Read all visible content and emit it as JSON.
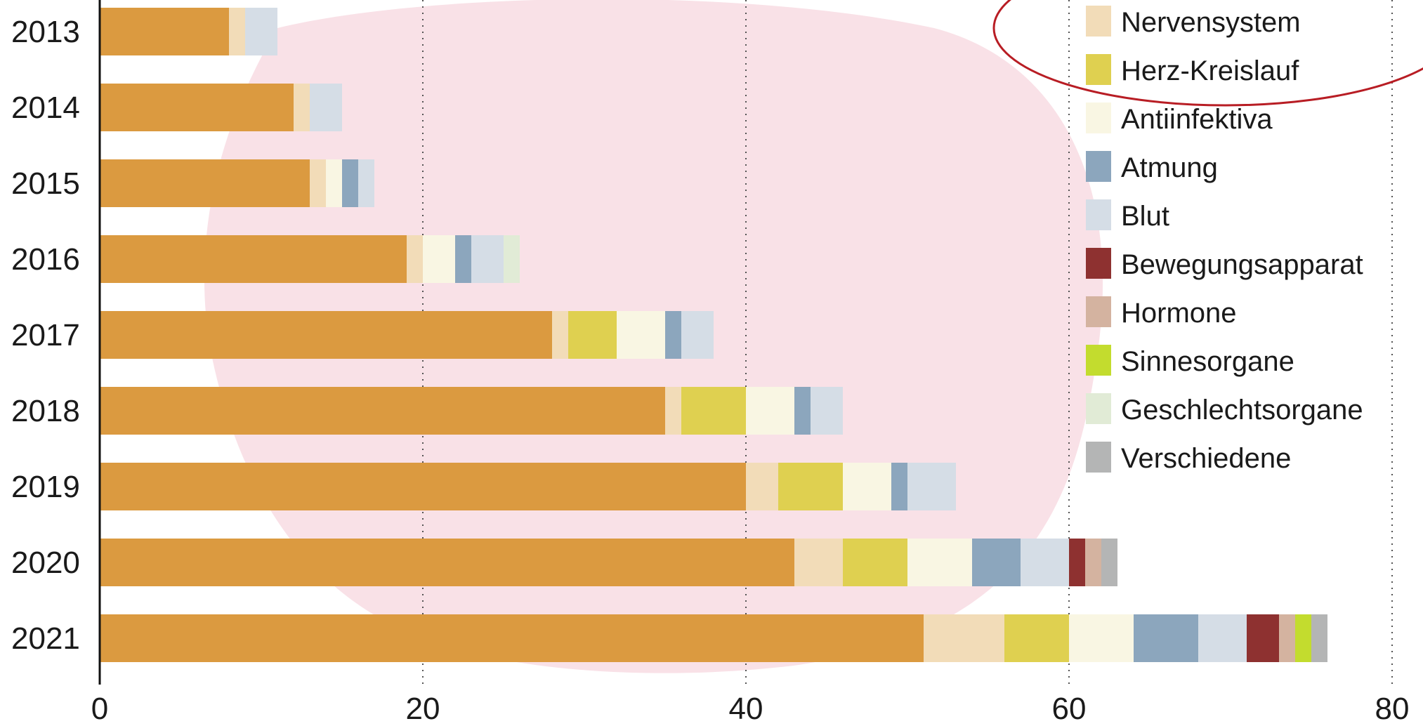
{
  "chart_data": {
    "type": "bar",
    "orientation": "horizontal",
    "stacked": true,
    "categories": [
      "2013",
      "2014",
      "2015",
      "2016",
      "2017",
      "2018",
      "2019",
      "2020",
      "2021"
    ],
    "xlim": [
      0,
      80
    ],
    "xticks": [
      0,
      20,
      40,
      60,
      80
    ],
    "grid": "vertical dotted",
    "legend_position": "top-right",
    "title": "",
    "xlabel": "",
    "ylabel": "",
    "series": [
      {
        "name": "",
        "color": "#db9a40",
        "values": [
          8,
          12,
          13,
          19,
          28,
          35,
          40,
          43,
          51
        ]
      },
      {
        "name": "Nervensystem",
        "color": "#f2dcb8",
        "values": [
          1,
          1,
          1,
          1,
          1,
          1,
          2,
          3,
          5
        ]
      },
      {
        "name": "Herz-Kreislauf",
        "color": "#dfd050",
        "values": [
          0,
          0,
          0,
          0,
          3,
          4,
          4,
          4,
          4
        ]
      },
      {
        "name": "Antiinfektiva",
        "color": "#f9f6e3",
        "values": [
          0,
          0,
          1,
          2,
          3,
          3,
          3,
          4,
          4
        ]
      },
      {
        "name": "Atmung",
        "color": "#8ca6bd",
        "values": [
          0,
          0,
          1,
          1,
          1,
          1,
          1,
          3,
          4
        ]
      },
      {
        "name": "Blut",
        "color": "#d5dde6",
        "values": [
          2,
          2,
          1,
          2,
          2,
          2,
          3,
          3,
          3
        ]
      },
      {
        "name": "Bewegungsapparat",
        "color": "#8e3130",
        "values": [
          0,
          0,
          0,
          0,
          0,
          0,
          0,
          1,
          2
        ]
      },
      {
        "name": "Hormone",
        "color": "#d4b3a0",
        "values": [
          0,
          0,
          0,
          0,
          0,
          0,
          0,
          1,
          1
        ]
      },
      {
        "name": "Sinnesorgane",
        "color": "#c3dc2e",
        "values": [
          0,
          0,
          0,
          0,
          0,
          0,
          0,
          0,
          1
        ]
      },
      {
        "name": "Geschlechtsorgane",
        "color": "#e1ebd6",
        "values": [
          0,
          0,
          0,
          1,
          0,
          0,
          0,
          0,
          0
        ]
      },
      {
        "name": "Verschiedene",
        "color": "#b4b5b5",
        "values": [
          0,
          0,
          0,
          0,
          0,
          0,
          0,
          1,
          1
        ]
      }
    ]
  },
  "colors": {
    "background_brush": "#f9e1e7",
    "highlight_ellipse": "#b81d24",
    "grid": "#555555",
    "axis": "#111111"
  }
}
